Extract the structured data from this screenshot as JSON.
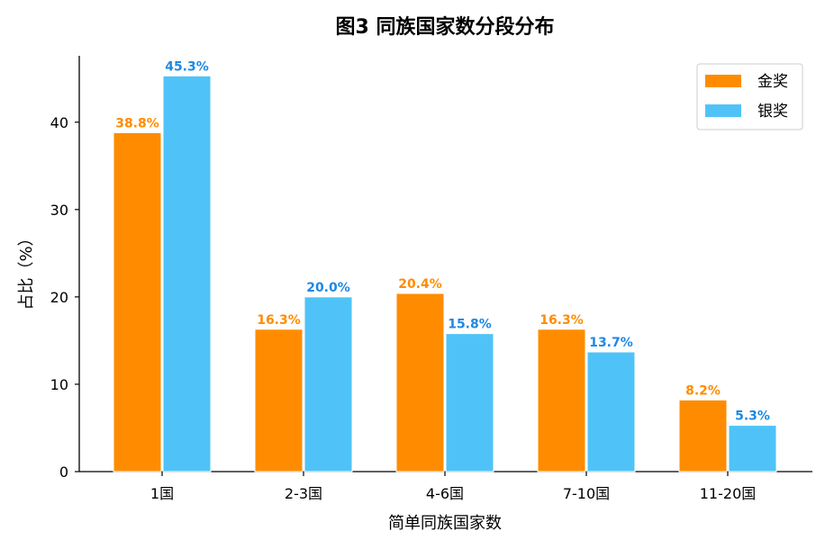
{
  "chart_data": {
    "type": "bar",
    "title": "图3  同族国家数分段分布",
    "xlabel": "简单同族国家数",
    "ylabel": "占比（%）",
    "categories": [
      "1国",
      "2-3国",
      "4-6国",
      "7-10国",
      "11-20国"
    ],
    "series": [
      {
        "name": "金奖",
        "color": "#FF8C00",
        "values": [
          38.8,
          16.3,
          20.4,
          16.3,
          8.2
        ],
        "labels": [
          "38.8%",
          "16.3%",
          "20.4%",
          "16.3%",
          "8.2%"
        ]
      },
      {
        "name": "银奖",
        "color": "#4FC3F7",
        "label_color": "#1E88E5",
        "values": [
          45.3,
          20.0,
          15.8,
          13.7,
          5.3
        ],
        "labels": [
          "45.3%",
          "20.0%",
          "15.8%",
          "13.7%",
          "5.3%"
        ]
      }
    ],
    "ylim": [
      0,
      47.6
    ],
    "yticks": [
      0,
      10,
      20,
      30,
      40
    ],
    "grid": false,
    "legend_position": "top-right"
  }
}
